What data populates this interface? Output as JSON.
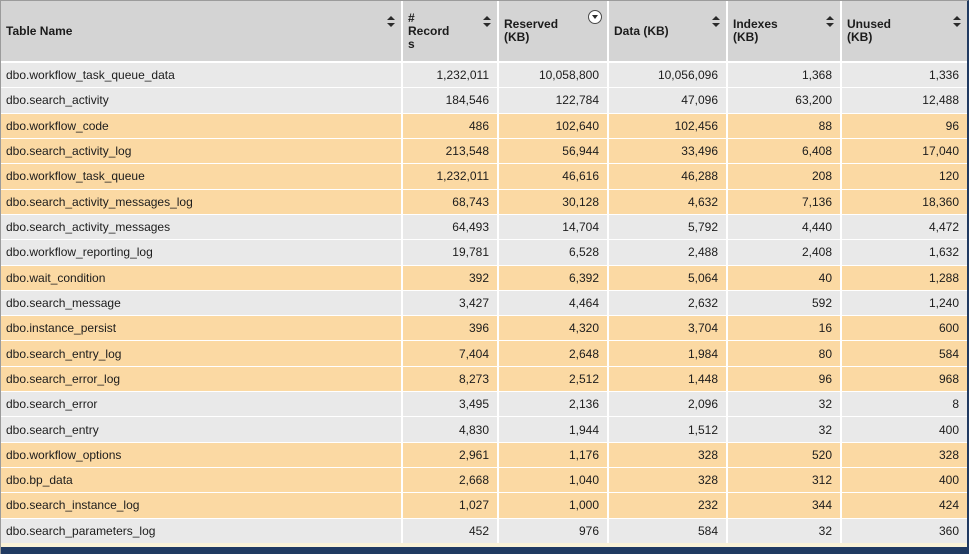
{
  "table": {
    "columns": [
      {
        "label": "Table Name",
        "sort_icon": "up-down-arrows"
      },
      {
        "label": "# Records",
        "sort_icon": "up-down-arrows"
      },
      {
        "label": "Reserved (KB)",
        "sort_icon": "circled-down-arrow",
        "sorted": "descending"
      },
      {
        "label": "Data (KB)",
        "sort_icon": "up-down-arrows"
      },
      {
        "label": "Indexes (KB)",
        "sort_icon": "up-down-arrows"
      },
      {
        "label": "Unused (KB)",
        "sort_icon": "up-down-arrows"
      }
    ],
    "rows": [
      {
        "name": "dbo.workflow_task_queue_data",
        "records": "1,232,011",
        "reserved": "10,058,800",
        "data": "10,056,096",
        "indexes": "1,368",
        "unused": "1,336",
        "highlight": false
      },
      {
        "name": "dbo.search_activity",
        "records": "184,546",
        "reserved": "122,784",
        "data": "47,096",
        "indexes": "63,200",
        "unused": "12,488",
        "highlight": false
      },
      {
        "name": "dbo.workflow_code",
        "records": "486",
        "reserved": "102,640",
        "data": "102,456",
        "indexes": "88",
        "unused": "96",
        "highlight": true
      },
      {
        "name": "dbo.search_activity_log",
        "records": "213,548",
        "reserved": "56,944",
        "data": "33,496",
        "indexes": "6,408",
        "unused": "17,040",
        "highlight": true
      },
      {
        "name": "dbo.workflow_task_queue",
        "records": "1,232,011",
        "reserved": "46,616",
        "data": "46,288",
        "indexes": "208",
        "unused": "120",
        "highlight": true
      },
      {
        "name": "dbo.search_activity_messages_log",
        "records": "68,743",
        "reserved": "30,128",
        "data": "4,632",
        "indexes": "7,136",
        "unused": "18,360",
        "highlight": true
      },
      {
        "name": "dbo.search_activity_messages",
        "records": "64,493",
        "reserved": "14,704",
        "data": "5,792",
        "indexes": "4,440",
        "unused": "4,472",
        "highlight": false
      },
      {
        "name": "dbo.workflow_reporting_log",
        "records": "19,781",
        "reserved": "6,528",
        "data": "2,488",
        "indexes": "2,408",
        "unused": "1,632",
        "highlight": false
      },
      {
        "name": "dbo.wait_condition",
        "records": "392",
        "reserved": "6,392",
        "data": "5,064",
        "indexes": "40",
        "unused": "1,288",
        "highlight": true
      },
      {
        "name": "dbo.search_message",
        "records": "3,427",
        "reserved": "4,464",
        "data": "2,632",
        "indexes": "592",
        "unused": "1,240",
        "highlight": false
      },
      {
        "name": "dbo.instance_persist",
        "records": "396",
        "reserved": "4,320",
        "data": "3,704",
        "indexes": "16",
        "unused": "600",
        "highlight": true
      },
      {
        "name": "dbo.search_entry_log",
        "records": "7,404",
        "reserved": "2,648",
        "data": "1,984",
        "indexes": "80",
        "unused": "584",
        "highlight": true
      },
      {
        "name": "dbo.search_error_log",
        "records": "8,273",
        "reserved": "2,512",
        "data": "1,448",
        "indexes": "96",
        "unused": "968",
        "highlight": true
      },
      {
        "name": "dbo.search_error",
        "records": "3,495",
        "reserved": "2,136",
        "data": "2,096",
        "indexes": "32",
        "unused": "8",
        "highlight": false
      },
      {
        "name": "dbo.search_entry",
        "records": "4,830",
        "reserved": "1,944",
        "data": "1,512",
        "indexes": "32",
        "unused": "400",
        "highlight": false
      },
      {
        "name": "dbo.workflow_options",
        "records": "2,961",
        "reserved": "1,176",
        "data": "328",
        "indexes": "520",
        "unused": "328",
        "highlight": true
      },
      {
        "name": "dbo.bp_data",
        "records": "2,668",
        "reserved": "1,040",
        "data": "328",
        "indexes": "312",
        "unused": "400",
        "highlight": true
      },
      {
        "name": "dbo.search_instance_log",
        "records": "1,027",
        "reserved": "1,000",
        "data": "232",
        "indexes": "344",
        "unused": "424",
        "highlight": true
      },
      {
        "name": "dbo.search_parameters_log",
        "records": "452",
        "reserved": "976",
        "data": "584",
        "indexes": "32",
        "unused": "360",
        "highlight": false
      }
    ]
  },
  "colors": {
    "header_bg": "#d4d4d4",
    "row_bg": "#e9e9e9",
    "row_highlight_bg": "#fbd9a3",
    "grid": "#ffffff",
    "text": "#1c1c1c",
    "bottom_bar": "#203a61",
    "bottom_strip": "#faf2d7",
    "border": "#9b9b9b"
  }
}
